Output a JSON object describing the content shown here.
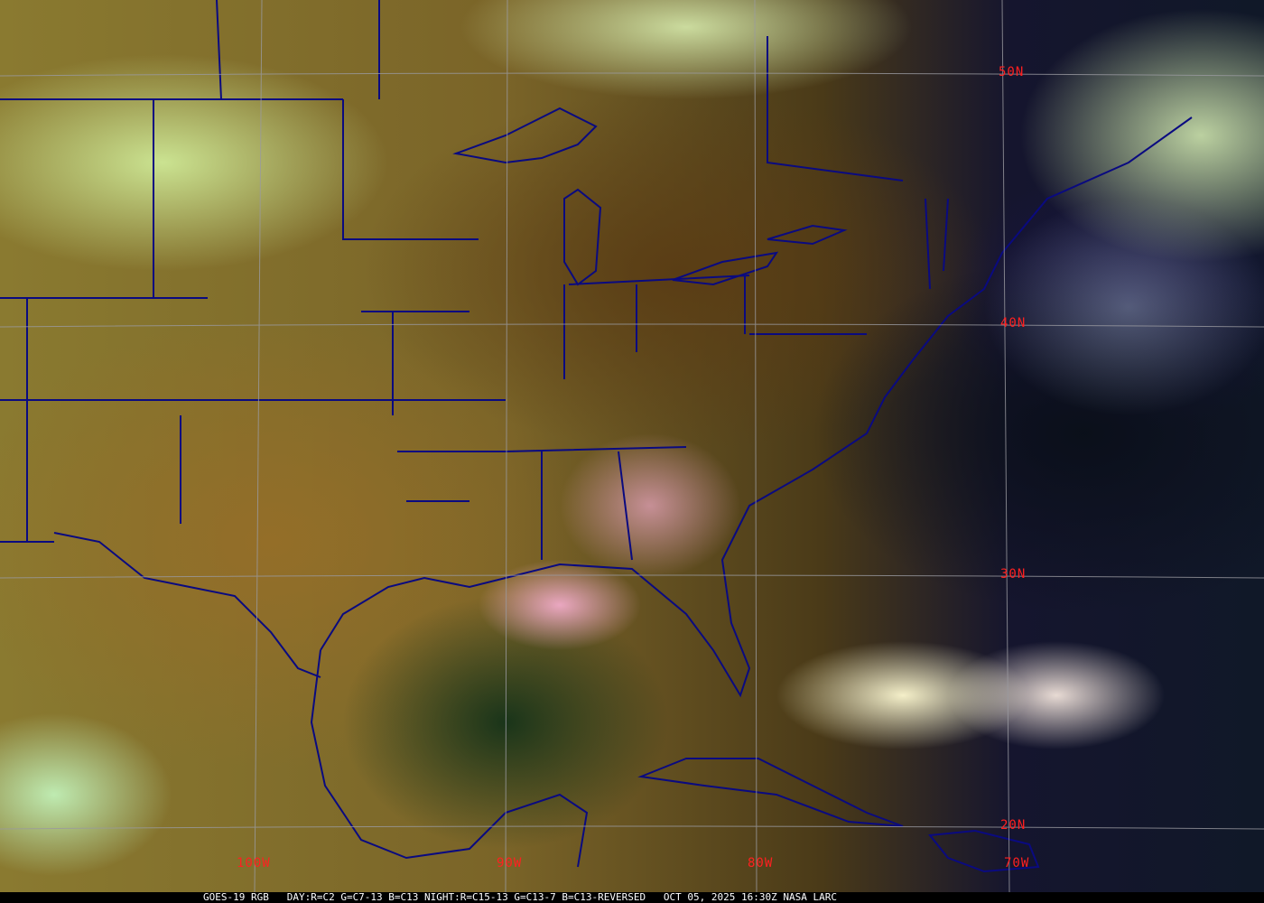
{
  "caption": "GOES-19 RGB   DAY:R=C2 G=C7-13 B=C13 NIGHT:R=C15-13 G=C13-7 B=C13-REVERSED   OCT 05, 2025 16:30Z NASA LARC",
  "latitude_labels": [
    "50N",
    "40N",
    "30N",
    "20N"
  ],
  "longitude_labels": [
    "100W",
    "90W",
    "80W",
    "70W"
  ],
  "colors": {
    "grid": "#9a9aa0",
    "borders": "#0a0a80",
    "labels": "#ff2020"
  }
}
